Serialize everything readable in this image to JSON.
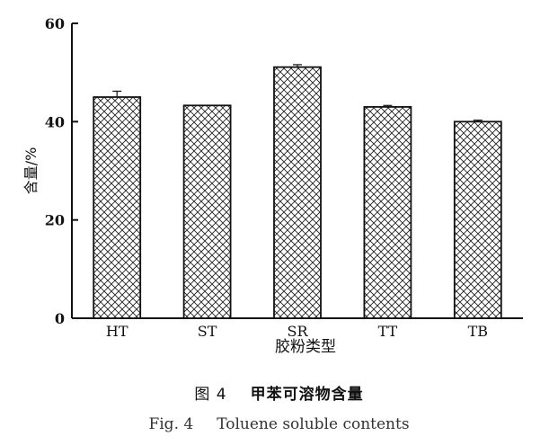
{
  "chart_data": {
    "type": "bar",
    "categories": [
      "HT",
      "ST",
      "SR",
      "TT",
      "TB"
    ],
    "values": [
      45.0,
      43.3,
      51.1,
      43.0,
      40.0
    ],
    "errors": [
      1.2,
      0.0,
      0.5,
      0.3,
      0.3
    ],
    "ylabel": "含量/%",
    "xlabel": "胶粉类型",
    "ylim": [
      0,
      60
    ],
    "yticks": [
      "0",
      "20",
      "40",
      "60"
    ],
    "grid": false,
    "pattern": "crosshatch"
  },
  "caption": {
    "cn_fig": "图 4",
    "cn_title": "甲苯可溶物含量",
    "en_fig": "Fig. 4",
    "en_title": "Toluene soluble contents"
  }
}
